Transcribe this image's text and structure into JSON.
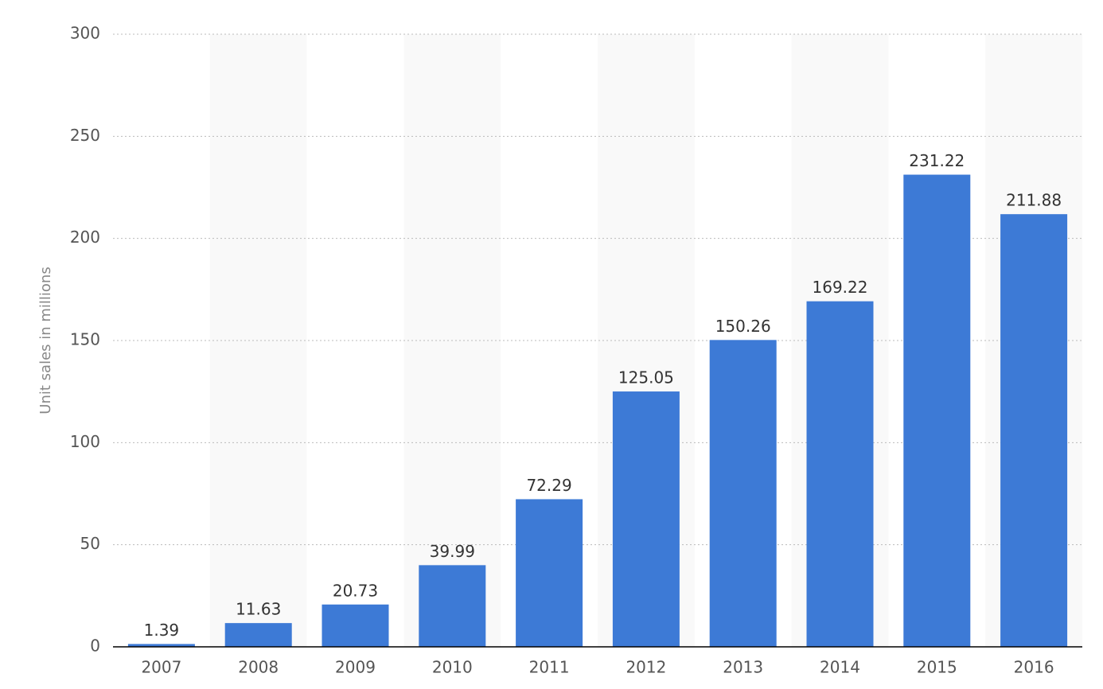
{
  "chart_data": {
    "type": "bar",
    "y_axis_label": "Unit sales in millions",
    "categories": [
      "2007",
      "2008",
      "2009",
      "2010",
      "2011",
      "2012",
      "2013",
      "2014",
      "2015",
      "2016"
    ],
    "values": [
      1.39,
      11.63,
      20.73,
      39.99,
      72.29,
      125.05,
      150.26,
      169.22,
      231.22,
      211.88
    ],
    "color": "#3d7ad6",
    "band_color": "#f9f9f9",
    "ylim": [
      0,
      300
    ],
    "yticks": [
      0,
      50,
      100,
      150,
      200,
      250,
      300
    ],
    "grid": true
  }
}
